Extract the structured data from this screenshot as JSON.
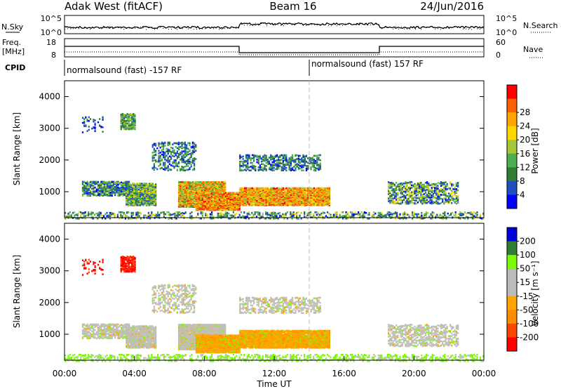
{
  "header": {
    "station": "Adak West (fitACF)",
    "beam": "Beam 16",
    "date": "24/Jun/2016"
  },
  "panels": {
    "nsky": {
      "left_label": "N.Sky",
      "right_label": "N.Search",
      "left_ticks": [
        "10^5",
        "10^0"
      ],
      "right_ticks": [
        "10^5",
        "10^0"
      ]
    },
    "freq": {
      "left_label_1": "Freq.",
      "left_label_2": "[MHz]",
      "right_label": "Nave",
      "left_ticks": [
        "18",
        "8"
      ],
      "right_ticks": [
        "60",
        "0"
      ]
    },
    "cpid": {
      "label": "CPID",
      "segments": [
        "normalsound (fast) -157 RF",
        "normalsound (fast) 157 RF"
      ]
    }
  },
  "chart_data": [
    {
      "type": "heatmap",
      "name": "power",
      "ylabel": "Slant Range [km]",
      "ylim": [
        180,
        4500
      ],
      "yticks": [
        "1000",
        "2000",
        "3000",
        "4000"
      ],
      "colorbar": {
        "label": "Power [dB]",
        "colors": [
          "#0000ff",
          "#1f4fbf",
          "#2e7d32",
          "#4caf50",
          "#a4c639",
          "#ffd700",
          "#ffa500",
          "#ff6000",
          "#ff0000"
        ],
        "ticks": [
          "4",
          "8",
          "12",
          "16",
          "20",
          "24",
          "28"
        ],
        "range": [
          0,
          32
        ]
      }
    },
    {
      "type": "heatmap",
      "name": "velocity",
      "xlabel": "Time UT",
      "ylabel": "Slant Range [km]",
      "ylim": [
        180,
        4500
      ],
      "yticks": [
        "1000",
        "2000",
        "3000",
        "4000"
      ],
      "xticks": [
        "00:00",
        "04:00",
        "08:00",
        "12:00",
        "16:00",
        "20:00",
        "00:00"
      ],
      "xlim_hours": [
        0,
        24
      ],
      "colorbar": {
        "label": "Velocity [m s⁻¹]",
        "colors": [
          "#0000dd",
          "#2e7d32",
          "#7cfc00",
          "#bbbbbb",
          "#bbbbbb",
          "#ffa500",
          "#ff8c00",
          "#ff4500",
          "#ff0000"
        ],
        "ticks": [
          "200",
          "100",
          "50",
          "15",
          "-15",
          "-50",
          "-100",
          "-200"
        ]
      }
    }
  ]
}
